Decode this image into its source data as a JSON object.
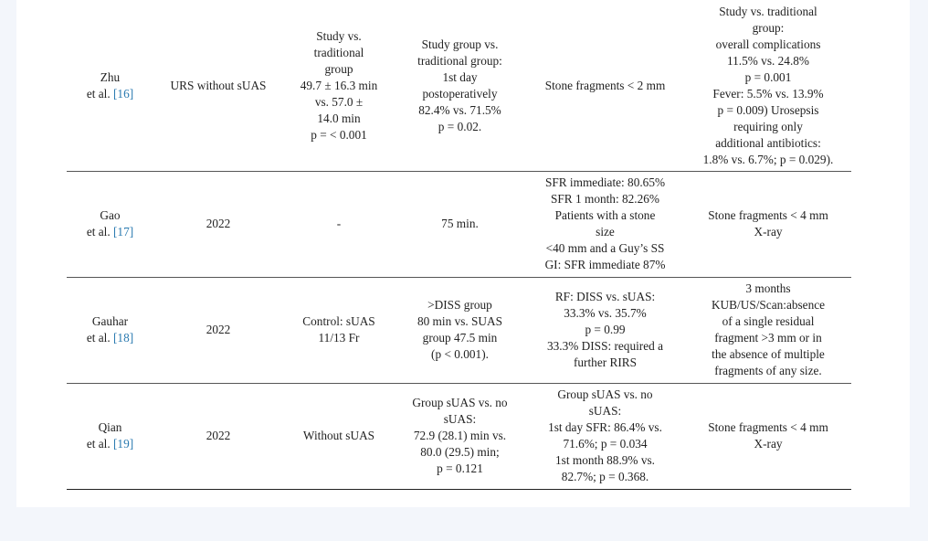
{
  "table": {
    "rows": [
      [
        [
          "Zhu",
          "et al. [16]"
        ],
        [
          "URS without sUAS"
        ],
        [
          "Study vs.",
          "traditional",
          "group",
          "49.7 ± 16.3 min",
          "vs. 57.0 ±",
          "14.0 min",
          "p = < 0.001"
        ],
        [
          "Study group vs.",
          "traditional group:",
          "1st day",
          "postoperatively",
          "82.4% vs. 71.5%",
          "p = 0.02."
        ],
        [
          "Stone fragments < 2 mm"
        ],
        [
          "Study vs. traditional",
          "group:",
          "overall complications",
          "11.5% vs. 24.8%",
          "p = 0.001",
          "Fever: 5.5% vs. 13.9%",
          "p = 0.009) Urosepsis",
          "requiring only",
          "additional antibiotics:",
          "1.8% vs. 6.7%; p = 0.029)."
        ]
      ],
      [
        [
          "Gao",
          "et al. [17]"
        ],
        [
          "2022"
        ],
        [
          "-"
        ],
        [
          "75 min."
        ],
        [
          "SFR immediate: 80.65%",
          "SFR 1 month: 82.26%",
          "Patients with a stone",
          "size",
          "<40 mm and a Guy’s SS",
          "GI: SFR immediate 87%"
        ],
        [
          "Stone fragments < 4 mm",
          "X-ray"
        ]
      ],
      [
        [
          "Gauhar",
          "et al. [18]"
        ],
        [
          "2022"
        ],
        [
          "Control: sUAS",
          "11/13 Fr"
        ],
        [
          ">DISS group",
          "80 min vs. SUAS",
          "group 47.5 min",
          "(p < 0.001)."
        ],
        [
          "RF: DISS vs. sUAS:",
          "33.3% vs. 35.7%",
          "p = 0.99",
          "33.3% DISS: required a",
          "further RIRS"
        ],
        [
          "3 months",
          "KUB/US/Scan:absence",
          "of a single residual",
          "fragment >3 mm or in",
          "the absence of multiple",
          "fragments of any size."
        ]
      ],
      [
        [
          "Qian",
          "et al. [19]"
        ],
        [
          "2022"
        ],
        [
          "Without sUAS"
        ],
        [
          "Group sUAS vs. no",
          "sUAS:",
          "72.9 (28.1) min vs.",
          "80.0 (29.5) min;",
          "p = 0.121"
        ],
        [
          "Group sUAS vs. no",
          "sUAS:",
          "1st day SFR: 86.4% vs.",
          "71.6%; p = 0.034",
          "1st month 88.9% vs.",
          "82.7%; p = 0.368."
        ],
        [
          "Stone fragments < 4 mm",
          "X-ray"
        ]
      ]
    ]
  }
}
